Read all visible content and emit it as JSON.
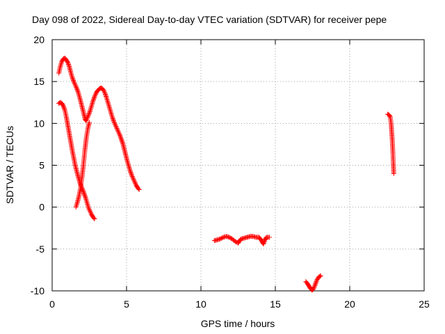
{
  "chart_data": {
    "type": "scatter",
    "title": "Day 098 of 2022, Sidereal Day-to-day VTEC variation (SDTVAR) for receiver pepe",
    "xlabel": "GPS time / hours",
    "ylabel": "SDTVAR / TECUs",
    "xlim": [
      0,
      25
    ],
    "ylim": [
      -10,
      20
    ],
    "xticks": [
      0,
      5,
      10,
      15,
      20,
      25
    ],
    "yticks": [
      -10,
      -5,
      0,
      5,
      10,
      15,
      20
    ],
    "grid": true,
    "marker": "+",
    "color": "#ff0000",
    "series": [
      {
        "points": [
          [
            0.45,
            16.0
          ],
          [
            0.55,
            16.8
          ],
          [
            0.65,
            17.4
          ],
          [
            0.75,
            17.7
          ],
          [
            0.85,
            17.8
          ],
          [
            0.95,
            17.6
          ],
          [
            1.05,
            17.3
          ],
          [
            1.15,
            16.8
          ],
          [
            1.25,
            16.1
          ],
          [
            1.35,
            15.5
          ],
          [
            1.45,
            15.0
          ],
          [
            1.55,
            14.6
          ],
          [
            1.65,
            14.2
          ],
          [
            1.75,
            13.7
          ],
          [
            1.85,
            13.1
          ],
          [
            1.95,
            12.4
          ],
          [
            2.05,
            11.7
          ],
          [
            2.15,
            11.0
          ],
          [
            2.22,
            10.5
          ],
          [
            2.28,
            10.3
          ],
          [
            2.35,
            10.6
          ],
          [
            2.45,
            11.0
          ],
          [
            2.55,
            11.5
          ],
          [
            2.65,
            12.1
          ],
          [
            2.75,
            12.7
          ],
          [
            2.85,
            13.2
          ],
          [
            2.95,
            13.6
          ],
          [
            3.05,
            13.9
          ],
          [
            3.15,
            14.1
          ],
          [
            3.25,
            14.2
          ],
          [
            3.35,
            14.2
          ],
          [
            3.45,
            14.0
          ],
          [
            3.55,
            13.6
          ],
          [
            3.65,
            13.1
          ],
          [
            3.75,
            12.5
          ],
          [
            3.85,
            11.9
          ],
          [
            3.95,
            11.3
          ],
          [
            4.05,
            10.7
          ],
          [
            4.15,
            10.2
          ],
          [
            4.25,
            9.8
          ],
          [
            4.35,
            9.4
          ],
          [
            4.45,
            9.0
          ],
          [
            4.55,
            8.6
          ],
          [
            4.65,
            8.1
          ],
          [
            4.75,
            7.6
          ],
          [
            4.85,
            6.9
          ],
          [
            4.95,
            6.2
          ],
          [
            5.05,
            5.5
          ],
          [
            5.15,
            4.9
          ],
          [
            5.25,
            4.3
          ],
          [
            5.35,
            3.8
          ],
          [
            5.45,
            3.4
          ],
          [
            5.55,
            3.0
          ],
          [
            5.65,
            2.6
          ],
          [
            5.75,
            2.3
          ],
          [
            5.85,
            2.1
          ]
        ]
      },
      {
        "points": [
          [
            0.45,
            12.4
          ],
          [
            0.55,
            12.5
          ],
          [
            0.65,
            12.4
          ],
          [
            0.75,
            12.1
          ],
          [
            0.85,
            11.6
          ],
          [
            0.95,
            10.8
          ],
          [
            1.05,
            9.8
          ],
          [
            1.15,
            8.8
          ],
          [
            1.25,
            7.8
          ],
          [
            1.35,
            6.8
          ],
          [
            1.45,
            5.9
          ],
          [
            1.55,
            5.0
          ],
          [
            1.65,
            4.3
          ],
          [
            1.75,
            3.6
          ],
          [
            1.85,
            3.0
          ],
          [
            1.95,
            2.5
          ],
          [
            2.05,
            2.1
          ],
          [
            2.15,
            1.6
          ],
          [
            2.25,
            1.1
          ],
          [
            2.35,
            0.5
          ],
          [
            2.45,
            -0.1
          ],
          [
            2.55,
            -0.5
          ],
          [
            2.65,
            -0.9
          ],
          [
            2.75,
            -1.2
          ],
          [
            2.85,
            -1.4
          ]
        ]
      },
      {
        "points": [
          [
            1.6,
            0.0
          ],
          [
            1.7,
            0.6
          ],
          [
            1.8,
            1.3
          ],
          [
            1.9,
            2.2
          ],
          [
            2.0,
            3.5
          ],
          [
            2.1,
            5.0
          ],
          [
            2.2,
            6.8
          ],
          [
            2.3,
            8.3
          ],
          [
            2.4,
            9.4
          ],
          [
            2.5,
            10.1
          ]
        ]
      },
      {
        "points": [
          [
            10.9,
            -4.0
          ],
          [
            11.1,
            -3.9
          ],
          [
            11.3,
            -3.8
          ],
          [
            11.5,
            -3.6
          ],
          [
            11.7,
            -3.5
          ],
          [
            11.9,
            -3.6
          ],
          [
            12.1,
            -3.8
          ],
          [
            12.3,
            -4.1
          ],
          [
            12.5,
            -4.3
          ],
          [
            12.6,
            -4.0
          ],
          [
            12.7,
            -3.8
          ],
          [
            12.9,
            -3.7
          ],
          [
            13.1,
            -3.6
          ],
          [
            13.3,
            -3.5
          ],
          [
            13.5,
            -3.5
          ],
          [
            13.7,
            -3.6
          ],
          [
            13.9,
            -3.6
          ],
          [
            14.0,
            -3.8
          ],
          [
            14.1,
            -4.1
          ],
          [
            14.2,
            -4.4
          ],
          [
            14.3,
            -3.9
          ],
          [
            14.4,
            -3.6
          ],
          [
            14.6,
            -3.6
          ]
        ]
      },
      {
        "points": [
          [
            17.05,
            -8.9
          ],
          [
            17.15,
            -9.1
          ],
          [
            17.25,
            -9.4
          ],
          [
            17.35,
            -9.7
          ],
          [
            17.45,
            -9.9
          ],
          [
            17.55,
            -9.8
          ],
          [
            17.65,
            -9.4
          ],
          [
            17.75,
            -8.9
          ],
          [
            17.85,
            -8.5
          ],
          [
            17.95,
            -8.3
          ],
          [
            18.05,
            -8.2
          ]
        ]
      },
      {
        "points": [
          [
            22.55,
            11.1
          ],
          [
            22.65,
            11.0
          ],
          [
            22.72,
            10.8
          ],
          [
            22.78,
            10.0
          ],
          [
            22.82,
            9.0
          ],
          [
            22.86,
            8.0
          ],
          [
            22.9,
            6.5
          ],
          [
            22.93,
            5.2
          ],
          [
            22.96,
            4.0
          ]
        ]
      }
    ]
  }
}
